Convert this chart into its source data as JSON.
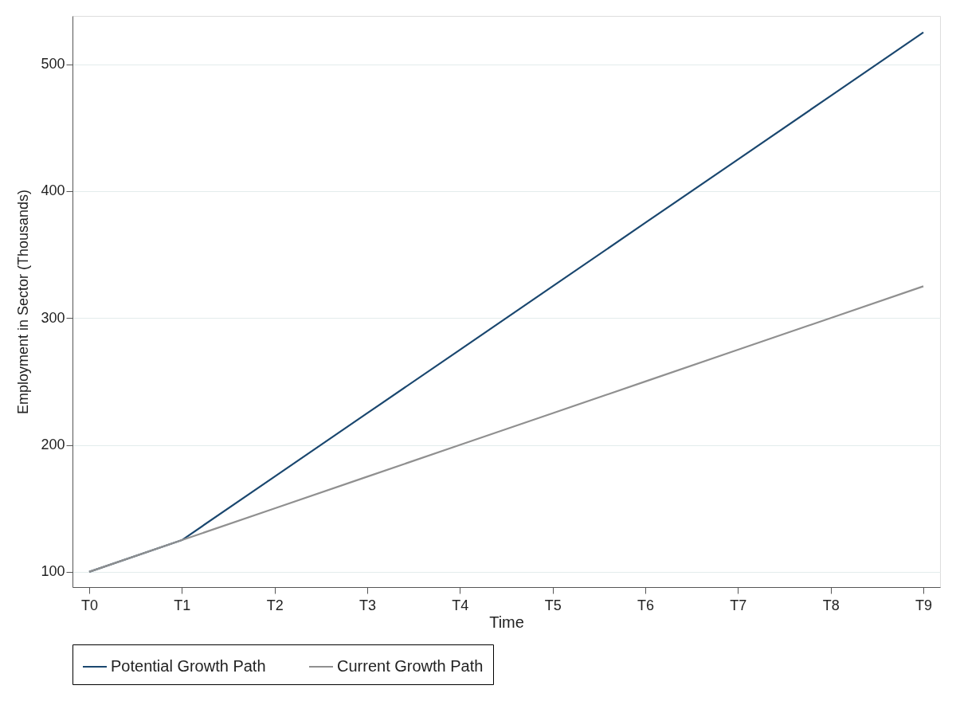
{
  "chart_data": {
    "type": "line",
    "xlabel": "Time",
    "ylabel": "Employment in Sector (Thousands)",
    "categories": [
      "T0",
      "T1",
      "T2",
      "T3",
      "T4",
      "T5",
      "T6",
      "T7",
      "T8",
      "T9"
    ],
    "series": [
      {
        "name": "Potential Growth Path",
        "color": "#1a476f",
        "values": [
          100,
          125,
          175,
          225,
          275,
          325,
          375,
          425,
          475,
          525
        ]
      },
      {
        "name": "Current Growth Path",
        "color": "#909090",
        "values": [
          100,
          125,
          150,
          175,
          200,
          225,
          250,
          275,
          300,
          325
        ]
      }
    ],
    "ylim": [
      88,
      538
    ],
    "yticks": [
      100,
      200,
      300,
      400,
      500
    ],
    "grid": "y",
    "legend": "bottom",
    "line_style": "solid"
  }
}
